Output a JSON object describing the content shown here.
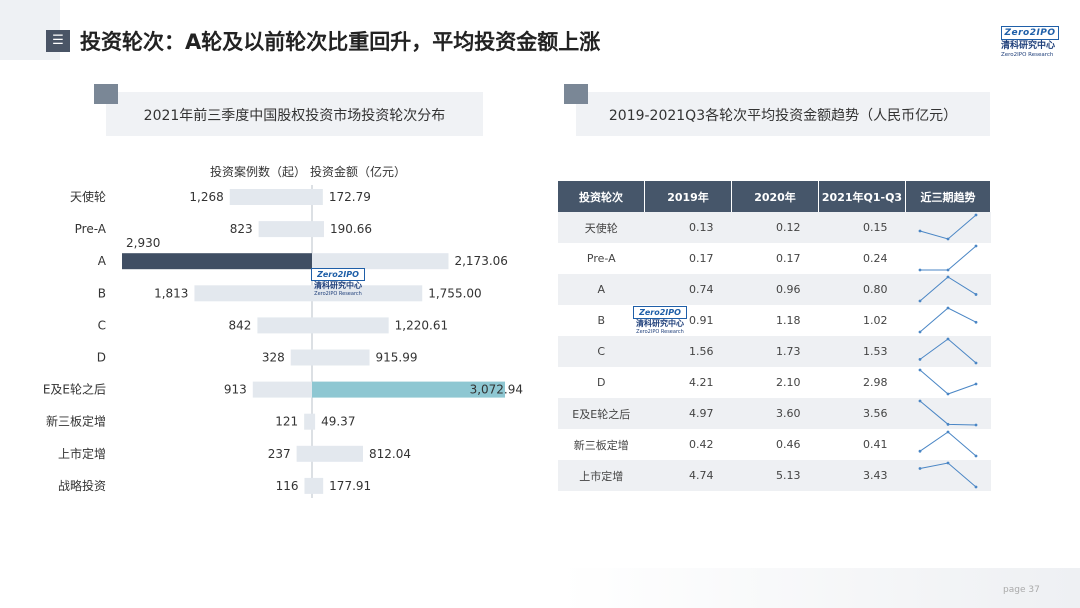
{
  "header": {
    "title": "投资轮次：A轮及以前轮次比重回升，平均投资金额上涨",
    "menu_glyph": "☰",
    "logo": {
      "brand": "Zero2IPO",
      "cn": "清科研究中心",
      "en": "Zero2IPO Research"
    }
  },
  "left_panel": {
    "title": "2021年前三季度中国股权投资市场投资轮次分布"
  },
  "right_panel": {
    "title": "2019-2021Q3各轮次平均投资金额趋势（人民币亿元）"
  },
  "watermark": {
    "brand": "Zero2IPO",
    "cn": "清科研究中心",
    "en": "Zero2IPO Research"
  },
  "chart_data": [
    {
      "type": "bar",
      "orientation": "horizontal-butterfly",
      "categories": [
        "天使轮",
        "Pre-A",
        "A",
        "B",
        "C",
        "D",
        "E及E轮之后",
        "新三板定增",
        "上市定增",
        "战略投资"
      ],
      "series": [
        {
          "name": "投资案例数（起）",
          "values": [
            1268,
            823,
            2930,
            1813,
            842,
            328,
            913,
            121,
            237,
            116
          ],
          "labels": [
            "1,268",
            "823",
            "2,930",
            "1,813",
            "842",
            "328",
            "913",
            "121",
            "237",
            "116"
          ]
        },
        {
          "name": "投资金额（亿元）",
          "values": [
            172.79,
            190.66,
            2173.06,
            1755.0,
            1220.61,
            915.99,
            3072.94,
            49.37,
            812.04,
            177.91
          ],
          "labels": [
            "172.79",
            "190.66",
            "2,173.06",
            "1,755.00",
            "1,220.61",
            "915.99",
            "3,072.94",
            "49.37",
            "812.04",
            "177.91"
          ]
        }
      ],
      "highlight": {
        "投资案例数（起）": "A",
        "投资金额（亿元）": "E及E轮之后"
      },
      "colors": {
        "base": "#e3e8ee",
        "highlight_left": "#3f4e63",
        "highlight_right": "#8ec7d2",
        "axis": "#b8c0c8"
      }
    },
    {
      "type": "table",
      "columns": [
        "投资轮次",
        "2019年",
        "2020年",
        "2021年Q1-Q3",
        "近三期趋势"
      ],
      "rows": [
        {
          "name": "天使轮",
          "v": [
            "0.13",
            "0.12",
            "0.15"
          ]
        },
        {
          "name": "Pre-A",
          "v": [
            "0.17",
            "0.17",
            "0.24"
          ]
        },
        {
          "name": "A",
          "v": [
            "0.74",
            "0.96",
            "0.80"
          ]
        },
        {
          "name": "B",
          "v": [
            "0.91",
            "1.18",
            "1.02"
          ]
        },
        {
          "name": "C",
          "v": [
            "1.56",
            "1.73",
            "1.53"
          ]
        },
        {
          "name": "D",
          "v": [
            "4.21",
            "2.10",
            "2.98"
          ]
        },
        {
          "name": "E及E轮之后",
          "v": [
            "4.97",
            "3.60",
            "3.56"
          ]
        },
        {
          "name": "新三板定增",
          "v": [
            "0.42",
            "0.46",
            "0.41"
          ]
        },
        {
          "name": "上市定增",
          "v": [
            "4.74",
            "5.13",
            "3.43"
          ]
        }
      ],
      "colors": {
        "header": "#46566a",
        "stripe": "#eef0f3",
        "sparkline": "#4a86c5"
      }
    }
  ],
  "footer": {
    "page": "page   37"
  }
}
